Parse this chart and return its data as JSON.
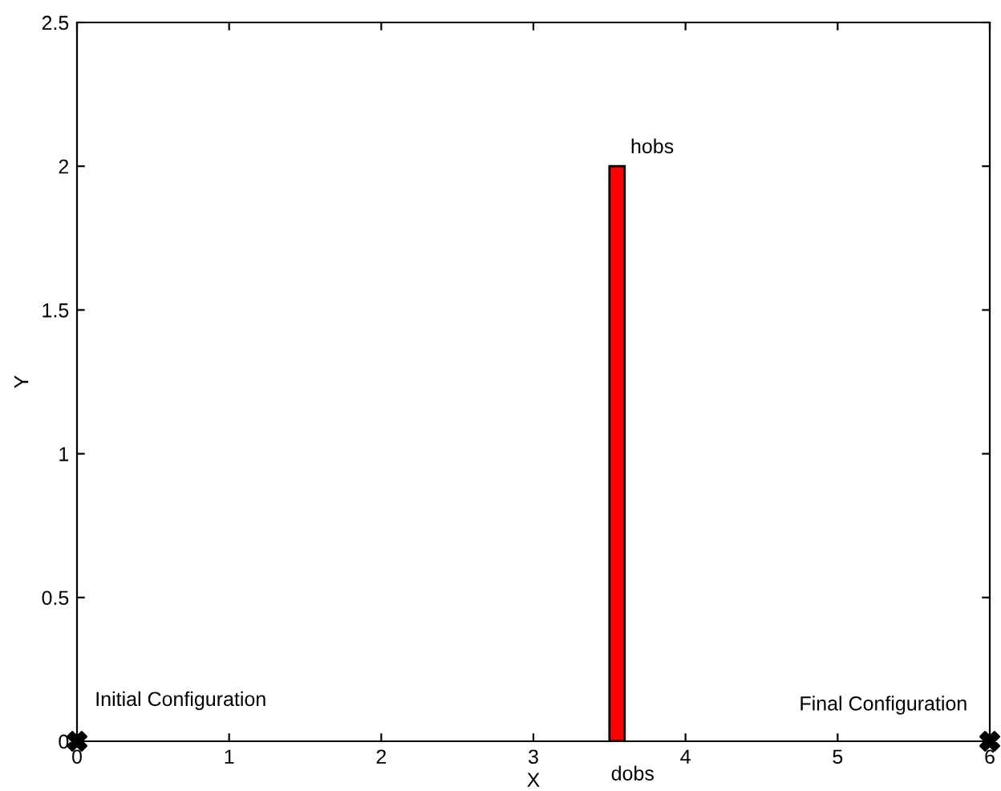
{
  "chart_data": {
    "type": "bar",
    "xlabel": "X",
    "ylabel": "Y",
    "xlim": [
      0,
      6
    ],
    "xticks": [
      0,
      1,
      2,
      3,
      4,
      5,
      6
    ],
    "ylim": [
      0,
      2.5
    ],
    "yticks": [
      0,
      0.5,
      1,
      1.5,
      2,
      2.5
    ],
    "grid": false,
    "legend": false,
    "series": [
      {
        "x": [
          3.55
        ],
        "values": [
          2
        ],
        "color": "#ff0000"
      },
      {
        "type": "scatter",
        "x": [
          0,
          6
        ],
        "values": [
          0,
          0
        ],
        "color": "#000000",
        "marker": "cross"
      }
    ],
    "annotations": [
      {
        "text": "hobs",
        "x": 3.55,
        "y": 2
      },
      {
        "text": "dobs",
        "x": 3.55,
        "y": 0
      },
      {
        "text": "Initial Configuration",
        "x": 0,
        "y": 0
      },
      {
        "text": "Final Configuration",
        "x": 6,
        "y": 0
      }
    ]
  }
}
